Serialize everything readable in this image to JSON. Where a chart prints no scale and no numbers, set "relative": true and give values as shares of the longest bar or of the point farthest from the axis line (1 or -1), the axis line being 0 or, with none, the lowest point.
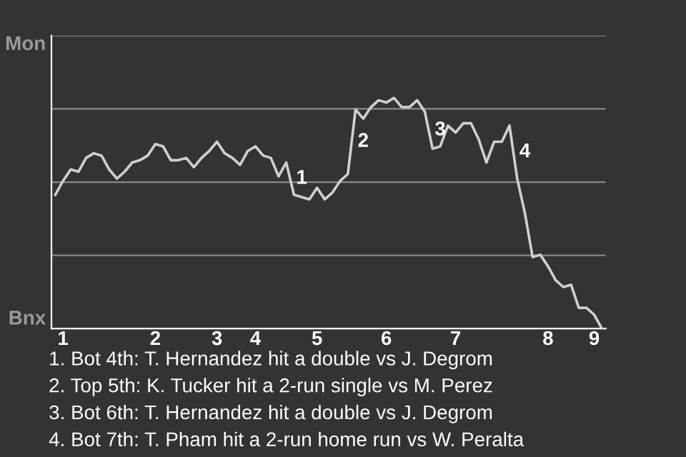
{
  "chart_data": {
    "type": "line",
    "relative": true,
    "categories": [
      null,
      "1",
      null,
      null,
      null,
      null,
      null,
      null,
      null,
      null,
      null,
      null,
      null,
      "2",
      null,
      null,
      null,
      null,
      null,
      null,
      null,
      "3",
      null,
      null,
      null,
      null,
      "4",
      null,
      null,
      null,
      null,
      null,
      null,
      null,
      "5",
      null,
      null,
      null,
      null,
      null,
      null,
      null,
      null,
      "6",
      null,
      null,
      null,
      null,
      null,
      null,
      null,
      null,
      "7",
      null,
      null,
      null,
      null,
      null,
      null,
      null,
      null,
      null,
      null,
      null,
      "8",
      null,
      null,
      null,
      null,
      null,
      "9",
      null
    ],
    "grid": "y",
    "marker": "none",
    "line_style": "solid",
    "series": [
      {
        "color": "#d0d0d0",
        "values": [
          0.58,
          0.64,
          0.69,
          0.68,
          0.74,
          0.76,
          0.75,
          0.69,
          0.65,
          0.68,
          0.72,
          0.73,
          0.75,
          0.8,
          0.79,
          0.73,
          0.73,
          0.74,
          0.7,
          0.74,
          0.77,
          0.81,
          0.76,
          0.74,
          0.71,
          0.77,
          0.79,
          0.75,
          0.74,
          0.66,
          0.72,
          0.58,
          0.57,
          0.56,
          0.61,
          0.56,
          0.59,
          0.64,
          0.67,
          0.95,
          0.91,
          0.96,
          0.99,
          0.98,
          1,
          0.96,
          0.96,
          0.99,
          0.94,
          0.78,
          0.79,
          0.88,
          0.85,
          0.89,
          0.89,
          0.82,
          0.72,
          0.81,
          0.81,
          0.88,
          0.65,
          0.5,
          0.31,
          0.32,
          0.27,
          0.21,
          0.18,
          0.19,
          0.09,
          0.09,
          0.06,
          0
        ]
      }
    ],
    "annotations": [
      "Mon",
      "Bnx",
      "1",
      "2",
      "3",
      "4",
      "1. Bot 4th: T. Hernandez hit a double vs J. Degrom",
      "2. Top 5th: K. Tucker hit a 2-run single vs M. Perez",
      "3. Bot 6th: T. Hernandez hit a double vs J. Degrom",
      "4. Bot 7th: T. Pham hit a 2-run home run vs W. Peralta"
    ]
  }
}
